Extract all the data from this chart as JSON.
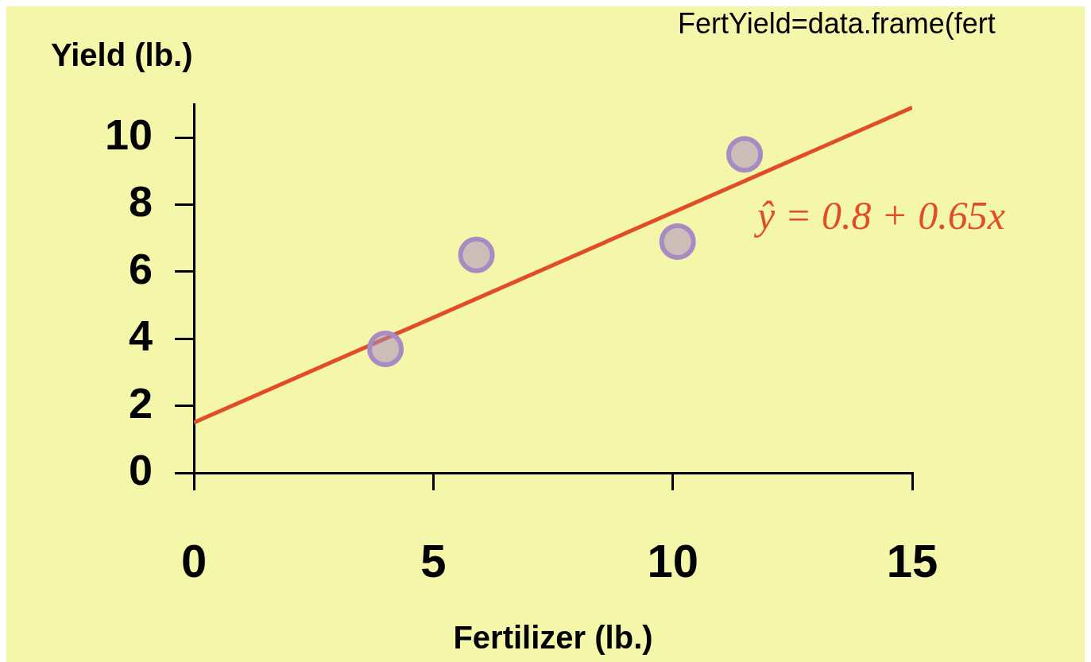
{
  "chart_data": {
    "type": "scatter",
    "xlabel": "Fertilizer (lb.)",
    "ylabel": "Yield (lb.)",
    "annotations": [
      "FertYield=data.frame(fert",
      "ŷ = 0.8 + 0.65x"
    ],
    "xlim": [
      0,
      15
    ],
    "xticks": [
      0,
      5,
      10,
      15
    ],
    "ylim": [
      0,
      11
    ],
    "yticks": [
      0,
      2,
      4,
      6,
      8,
      10
    ],
    "grid": false,
    "legend": false,
    "series": [
      {
        "marker": "circle",
        "color": "#a98bc4",
        "x": [
          4.0,
          5.9,
          10.1,
          11.5
        ],
        "values": [
          3.7,
          6.5,
          6.9,
          9.5
        ]
      },
      {
        "type": "line",
        "marker": "none",
        "color": "#e04e28",
        "x": [
          0,
          15
        ],
        "values": [
          1.5,
          10.9
        ]
      }
    ]
  }
}
